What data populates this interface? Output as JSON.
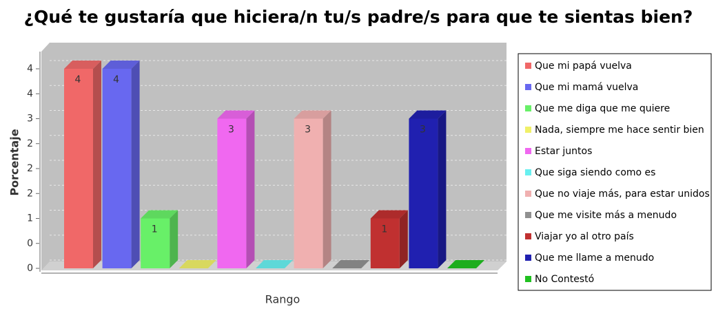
{
  "chart_data": {
    "type": "bar3d",
    "title": "¿Qué te gustaría que hiciera/n tu/s padre/s para que te sientas bien?",
    "x_label": "Rango",
    "y_label": "Porcentaje",
    "ylim": [
      0,
      4
    ],
    "yticks": [
      0,
      {
        "value": 0.5,
        "label": "0"
      },
      1,
      {
        "value": 1.5,
        "label": "2"
      },
      2,
      {
        "value": 2.5,
        "label": "2"
      },
      3,
      {
        "value": 3.5,
        "label": "4"
      },
      4
    ],
    "grid": true,
    "legend": "right",
    "series": [
      {
        "name": "Que mi papá vuelva",
        "color": "#f06868",
        "values": [
          4
        ]
      },
      {
        "name": "Que mi mamá vuelva",
        "color": "#6868f0",
        "values": [
          4
        ]
      },
      {
        "name": "Que me diga que me quiere",
        "color": "#68f068",
        "values": [
          1
        ]
      },
      {
        "name": "Nada, siempre me hace sentir bien",
        "color": "#f0f068",
        "values": [
          0
        ]
      },
      {
        "name": "Estar juntos",
        "color": "#f068f0",
        "values": [
          3
        ]
      },
      {
        "name": "Que siga siendo como es",
        "color": "#68f0f0",
        "values": [
          0
        ]
      },
      {
        "name": "Que no viaje más, para estar unidos",
        "color": "#f0b0b0",
        "values": [
          3
        ]
      },
      {
        "name": "Que me visite más a menudo",
        "color": "#909090",
        "values": [
          0
        ]
      },
      {
        "name": "Viajar yo al otro país",
        "color": "#c03030",
        "values": [
          1
        ]
      },
      {
        "name": "Que me llame a menudo",
        "color": "#2020b0",
        "values": [
          3
        ]
      },
      {
        "name": "No Contestó",
        "color": "#20c020",
        "values": [
          0
        ]
      }
    ]
  }
}
